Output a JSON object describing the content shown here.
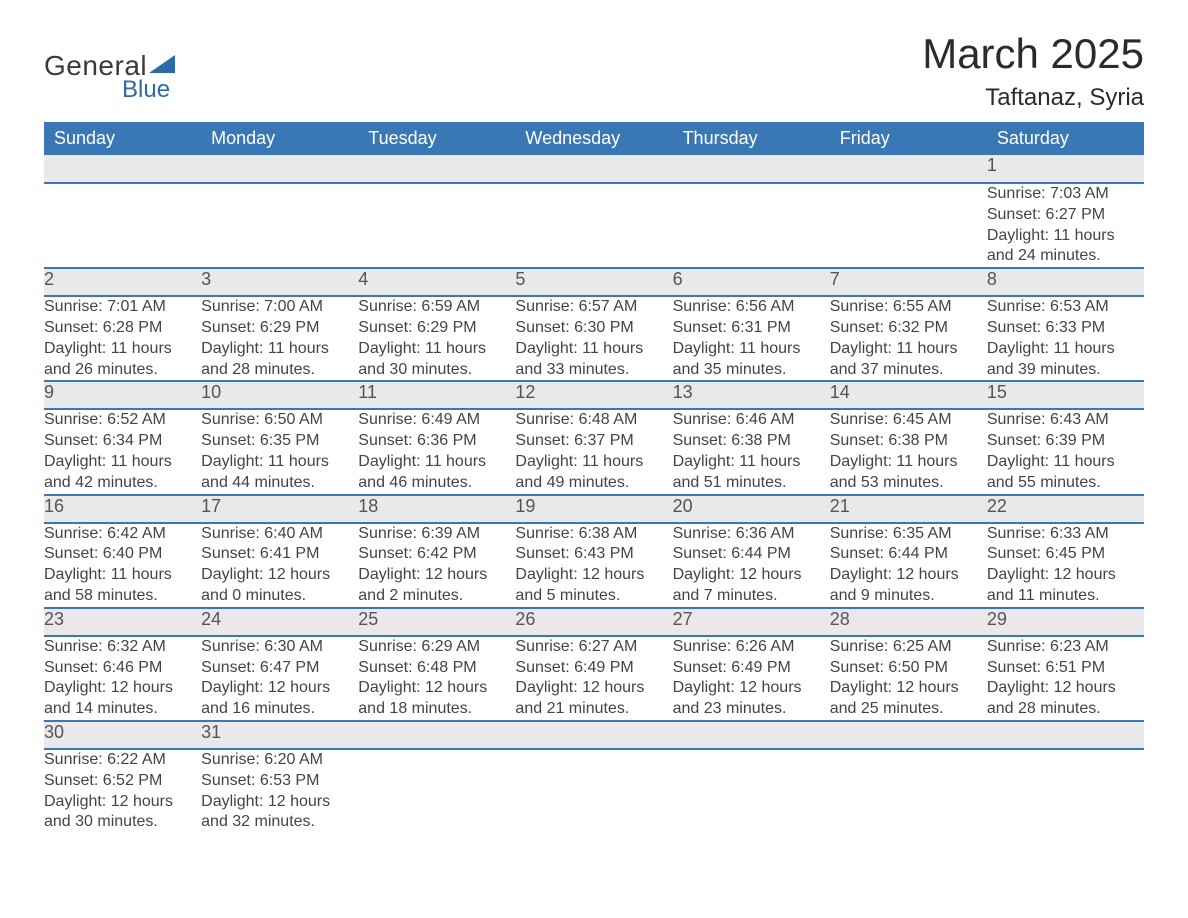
{
  "brand": {
    "general": "General",
    "blue": "Blue"
  },
  "title": "March 2025",
  "location": "Taftanaz, Syria",
  "colors": {
    "header_bg": "#3a78b5",
    "header_text": "#ffffff",
    "daynum_bg": "#e9e9e9",
    "row_divider": "#3a78b5",
    "text": "#3a3a3a",
    "logo_accent": "#2f6aa8"
  },
  "day_headers": [
    "Sunday",
    "Monday",
    "Tuesday",
    "Wednesday",
    "Thursday",
    "Friday",
    "Saturday"
  ],
  "weeks": [
    {
      "nums": [
        "",
        "",
        "",
        "",
        "",
        "",
        "1"
      ],
      "cells": [
        null,
        null,
        null,
        null,
        null,
        null,
        {
          "sunrise": "Sunrise: 7:03 AM",
          "sunset": "Sunset: 6:27 PM",
          "dl1": "Daylight: 11 hours",
          "dl2": "and 24 minutes."
        }
      ]
    },
    {
      "nums": [
        "2",
        "3",
        "4",
        "5",
        "6",
        "7",
        "8"
      ],
      "cells": [
        {
          "sunrise": "Sunrise: 7:01 AM",
          "sunset": "Sunset: 6:28 PM",
          "dl1": "Daylight: 11 hours",
          "dl2": "and 26 minutes."
        },
        {
          "sunrise": "Sunrise: 7:00 AM",
          "sunset": "Sunset: 6:29 PM",
          "dl1": "Daylight: 11 hours",
          "dl2": "and 28 minutes."
        },
        {
          "sunrise": "Sunrise: 6:59 AM",
          "sunset": "Sunset: 6:29 PM",
          "dl1": "Daylight: 11 hours",
          "dl2": "and 30 minutes."
        },
        {
          "sunrise": "Sunrise: 6:57 AM",
          "sunset": "Sunset: 6:30 PM",
          "dl1": "Daylight: 11 hours",
          "dl2": "and 33 minutes."
        },
        {
          "sunrise": "Sunrise: 6:56 AM",
          "sunset": "Sunset: 6:31 PM",
          "dl1": "Daylight: 11 hours",
          "dl2": "and 35 minutes."
        },
        {
          "sunrise": "Sunrise: 6:55 AM",
          "sunset": "Sunset: 6:32 PM",
          "dl1": "Daylight: 11 hours",
          "dl2": "and 37 minutes."
        },
        {
          "sunrise": "Sunrise: 6:53 AM",
          "sunset": "Sunset: 6:33 PM",
          "dl1": "Daylight: 11 hours",
          "dl2": "and 39 minutes."
        }
      ]
    },
    {
      "nums": [
        "9",
        "10",
        "11",
        "12",
        "13",
        "14",
        "15"
      ],
      "cells": [
        {
          "sunrise": "Sunrise: 6:52 AM",
          "sunset": "Sunset: 6:34 PM",
          "dl1": "Daylight: 11 hours",
          "dl2": "and 42 minutes."
        },
        {
          "sunrise": "Sunrise: 6:50 AM",
          "sunset": "Sunset: 6:35 PM",
          "dl1": "Daylight: 11 hours",
          "dl2": "and 44 minutes."
        },
        {
          "sunrise": "Sunrise: 6:49 AM",
          "sunset": "Sunset: 6:36 PM",
          "dl1": "Daylight: 11 hours",
          "dl2": "and 46 minutes."
        },
        {
          "sunrise": "Sunrise: 6:48 AM",
          "sunset": "Sunset: 6:37 PM",
          "dl1": "Daylight: 11 hours",
          "dl2": "and 49 minutes."
        },
        {
          "sunrise": "Sunrise: 6:46 AM",
          "sunset": "Sunset: 6:38 PM",
          "dl1": "Daylight: 11 hours",
          "dl2": "and 51 minutes."
        },
        {
          "sunrise": "Sunrise: 6:45 AM",
          "sunset": "Sunset: 6:38 PM",
          "dl1": "Daylight: 11 hours",
          "dl2": "and 53 minutes."
        },
        {
          "sunrise": "Sunrise: 6:43 AM",
          "sunset": "Sunset: 6:39 PM",
          "dl1": "Daylight: 11 hours",
          "dl2": "and 55 minutes."
        }
      ]
    },
    {
      "nums": [
        "16",
        "17",
        "18",
        "19",
        "20",
        "21",
        "22"
      ],
      "cells": [
        {
          "sunrise": "Sunrise: 6:42 AM",
          "sunset": "Sunset: 6:40 PM",
          "dl1": "Daylight: 11 hours",
          "dl2": "and 58 minutes."
        },
        {
          "sunrise": "Sunrise: 6:40 AM",
          "sunset": "Sunset: 6:41 PM",
          "dl1": "Daylight: 12 hours",
          "dl2": "and 0 minutes."
        },
        {
          "sunrise": "Sunrise: 6:39 AM",
          "sunset": "Sunset: 6:42 PM",
          "dl1": "Daylight: 12 hours",
          "dl2": "and 2 minutes."
        },
        {
          "sunrise": "Sunrise: 6:38 AM",
          "sunset": "Sunset: 6:43 PM",
          "dl1": "Daylight: 12 hours",
          "dl2": "and 5 minutes."
        },
        {
          "sunrise": "Sunrise: 6:36 AM",
          "sunset": "Sunset: 6:44 PM",
          "dl1": "Daylight: 12 hours",
          "dl2": "and 7 minutes."
        },
        {
          "sunrise": "Sunrise: 6:35 AM",
          "sunset": "Sunset: 6:44 PM",
          "dl1": "Daylight: 12 hours",
          "dl2": "and 9 minutes."
        },
        {
          "sunrise": "Sunrise: 6:33 AM",
          "sunset": "Sunset: 6:45 PM",
          "dl1": "Daylight: 12 hours",
          "dl2": "and 11 minutes."
        }
      ]
    },
    {
      "nums": [
        "23",
        "24",
        "25",
        "26",
        "27",
        "28",
        "29"
      ],
      "cells": [
        {
          "sunrise": "Sunrise: 6:32 AM",
          "sunset": "Sunset: 6:46 PM",
          "dl1": "Daylight: 12 hours",
          "dl2": "and 14 minutes."
        },
        {
          "sunrise": "Sunrise: 6:30 AM",
          "sunset": "Sunset: 6:47 PM",
          "dl1": "Daylight: 12 hours",
          "dl2": "and 16 minutes."
        },
        {
          "sunrise": "Sunrise: 6:29 AM",
          "sunset": "Sunset: 6:48 PM",
          "dl1": "Daylight: 12 hours",
          "dl2": "and 18 minutes."
        },
        {
          "sunrise": "Sunrise: 6:27 AM",
          "sunset": "Sunset: 6:49 PM",
          "dl1": "Daylight: 12 hours",
          "dl2": "and 21 minutes."
        },
        {
          "sunrise": "Sunrise: 6:26 AM",
          "sunset": "Sunset: 6:49 PM",
          "dl1": "Daylight: 12 hours",
          "dl2": "and 23 minutes."
        },
        {
          "sunrise": "Sunrise: 6:25 AM",
          "sunset": "Sunset: 6:50 PM",
          "dl1": "Daylight: 12 hours",
          "dl2": "and 25 minutes."
        },
        {
          "sunrise": "Sunrise: 6:23 AM",
          "sunset": "Sunset: 6:51 PM",
          "dl1": "Daylight: 12 hours",
          "dl2": "and 28 minutes."
        }
      ]
    },
    {
      "nums": [
        "30",
        "31",
        "",
        "",
        "",
        "",
        ""
      ],
      "cells": [
        {
          "sunrise": "Sunrise: 6:22 AM",
          "sunset": "Sunset: 6:52 PM",
          "dl1": "Daylight: 12 hours",
          "dl2": "and 30 minutes."
        },
        {
          "sunrise": "Sunrise: 6:20 AM",
          "sunset": "Sunset: 6:53 PM",
          "dl1": "Daylight: 12 hours",
          "dl2": "and 32 minutes."
        },
        null,
        null,
        null,
        null,
        null
      ]
    }
  ]
}
